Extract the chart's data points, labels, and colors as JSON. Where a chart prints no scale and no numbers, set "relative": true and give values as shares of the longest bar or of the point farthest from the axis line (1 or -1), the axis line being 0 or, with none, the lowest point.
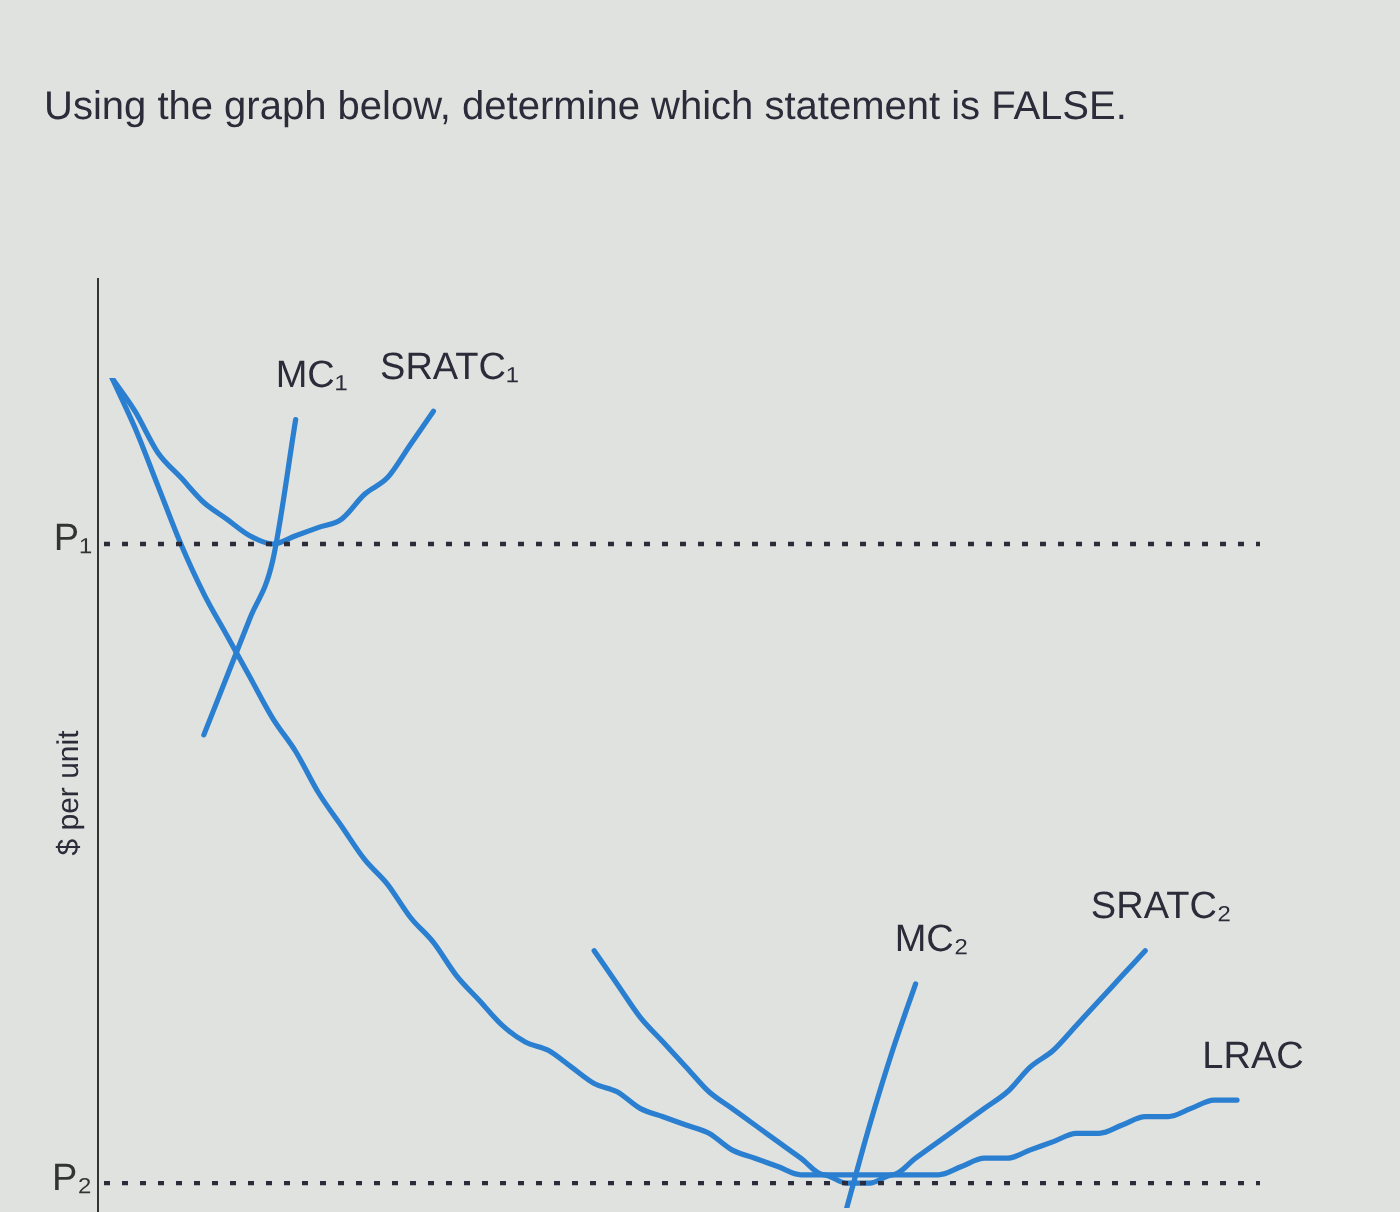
{
  "chart_data": {
    "type": "line",
    "relative": true,
    "title": "Using the graph below, determine which statement is FALSE.",
    "ylabel": "$ per unit",
    "categories": [
      null,
      null,
      null,
      null,
      null,
      null,
      null,
      null,
      null,
      null,
      null,
      null,
      null,
      null,
      null,
      null,
      null,
      null,
      null,
      null,
      null,
      null,
      null,
      null,
      null,
      null,
      null,
      null,
      null,
      null,
      null,
      null,
      null,
      null,
      null,
      null,
      null,
      null,
      null,
      null,
      null,
      null,
      null,
      null,
      null,
      null,
      null,
      null,
      null,
      null,
      null
    ],
    "series": [
      {
        "name": "MC₁",
        "color": "#2a7fd0",
        "values": [
          null,
          null,
          null,
          null,
          0.57,
          0.64,
          0.71,
          0.78,
          0.95,
          null,
          null,
          null,
          null,
          null,
          null,
          null,
          null,
          null,
          null,
          null,
          null,
          null,
          null,
          null,
          null,
          null,
          null,
          null,
          null,
          null,
          null,
          null,
          null,
          null,
          null,
          null,
          null,
          null,
          null,
          null,
          null,
          null,
          null,
          null,
          null,
          null,
          null,
          null,
          null,
          null,
          null
        ]
      },
      {
        "name": "SRATC₁",
        "color": "#2a7fd0",
        "values": [
          1.0,
          0.96,
          0.91,
          0.88,
          0.85,
          0.83,
          0.81,
          0.8,
          0.81,
          0.82,
          0.83,
          0.86,
          0.88,
          0.92,
          0.96,
          null,
          null,
          null,
          null,
          null,
          null,
          null,
          null,
          null,
          null,
          null,
          null,
          null,
          null,
          null,
          null,
          null,
          null,
          null,
          null,
          null,
          null,
          null,
          null,
          null,
          null,
          null,
          null,
          null,
          null,
          null,
          null,
          null,
          null,
          null,
          null
        ]
      },
      {
        "name": "MC₂",
        "color": "#2a7fd0",
        "values": [
          null,
          null,
          null,
          null,
          null,
          null,
          null,
          null,
          null,
          null,
          null,
          null,
          null,
          null,
          null,
          null,
          null,
          null,
          null,
          null,
          null,
          null,
          null,
          null,
          null,
          null,
          null,
          null,
          null,
          null,
          null,
          null,
          0.0,
          0.1,
          0.19,
          0.27,
          null,
          null,
          null,
          null,
          null,
          null,
          null,
          null,
          null,
          null,
          null,
          null,
          null,
          null,
          null
        ]
      },
      {
        "name": "SRATC₂",
        "color": "#2a7fd0",
        "values": [
          null,
          null,
          null,
          null,
          null,
          null,
          null,
          null,
          null,
          null,
          null,
          null,
          null,
          null,
          null,
          null,
          null,
          null,
          null,
          null,
          null,
          0.31,
          0.27,
          0.23,
          0.2,
          0.17,
          0.14,
          0.12,
          0.1,
          0.08,
          0.06,
          0.04,
          0.04,
          0.04,
          0.04,
          0.06,
          0.08,
          0.1,
          0.12,
          0.14,
          0.17,
          0.19,
          0.22,
          0.25,
          0.28,
          0.31,
          null,
          null,
          null,
          null,
          null
        ]
      },
      {
        "name": "LRAC",
        "color": "#2a7fd0",
        "values": [
          1.0,
          0.94,
          0.87,
          0.8,
          0.74,
          0.69,
          0.64,
          0.59,
          0.55,
          0.5,
          0.46,
          0.42,
          0.39,
          0.35,
          0.32,
          0.28,
          0.25,
          0.22,
          0.2,
          0.19,
          0.17,
          0.15,
          0.14,
          0.12,
          0.11,
          0.1,
          0.09,
          0.07,
          0.06,
          0.05,
          0.04,
          0.04,
          0.03,
          0.03,
          0.04,
          0.04,
          0.04,
          0.05,
          0.06,
          0.06,
          0.07,
          0.08,
          0.09,
          0.09,
          0.1,
          0.11,
          0.11,
          0.12,
          0.13,
          0.13,
          null
        ]
      }
    ],
    "ref_lines": [
      {
        "axis": "y",
        "value": 0.8,
        "label": "P₁",
        "color": "#2b2b3a",
        "line_style": "dotted"
      },
      {
        "axis": "y",
        "value": 0.03,
        "label": "P₂",
        "color": "#2b2b3a",
        "line_style": "dotted"
      }
    ],
    "legend": false,
    "marker": "none",
    "line_style": "solid",
    "grid": false
  }
}
